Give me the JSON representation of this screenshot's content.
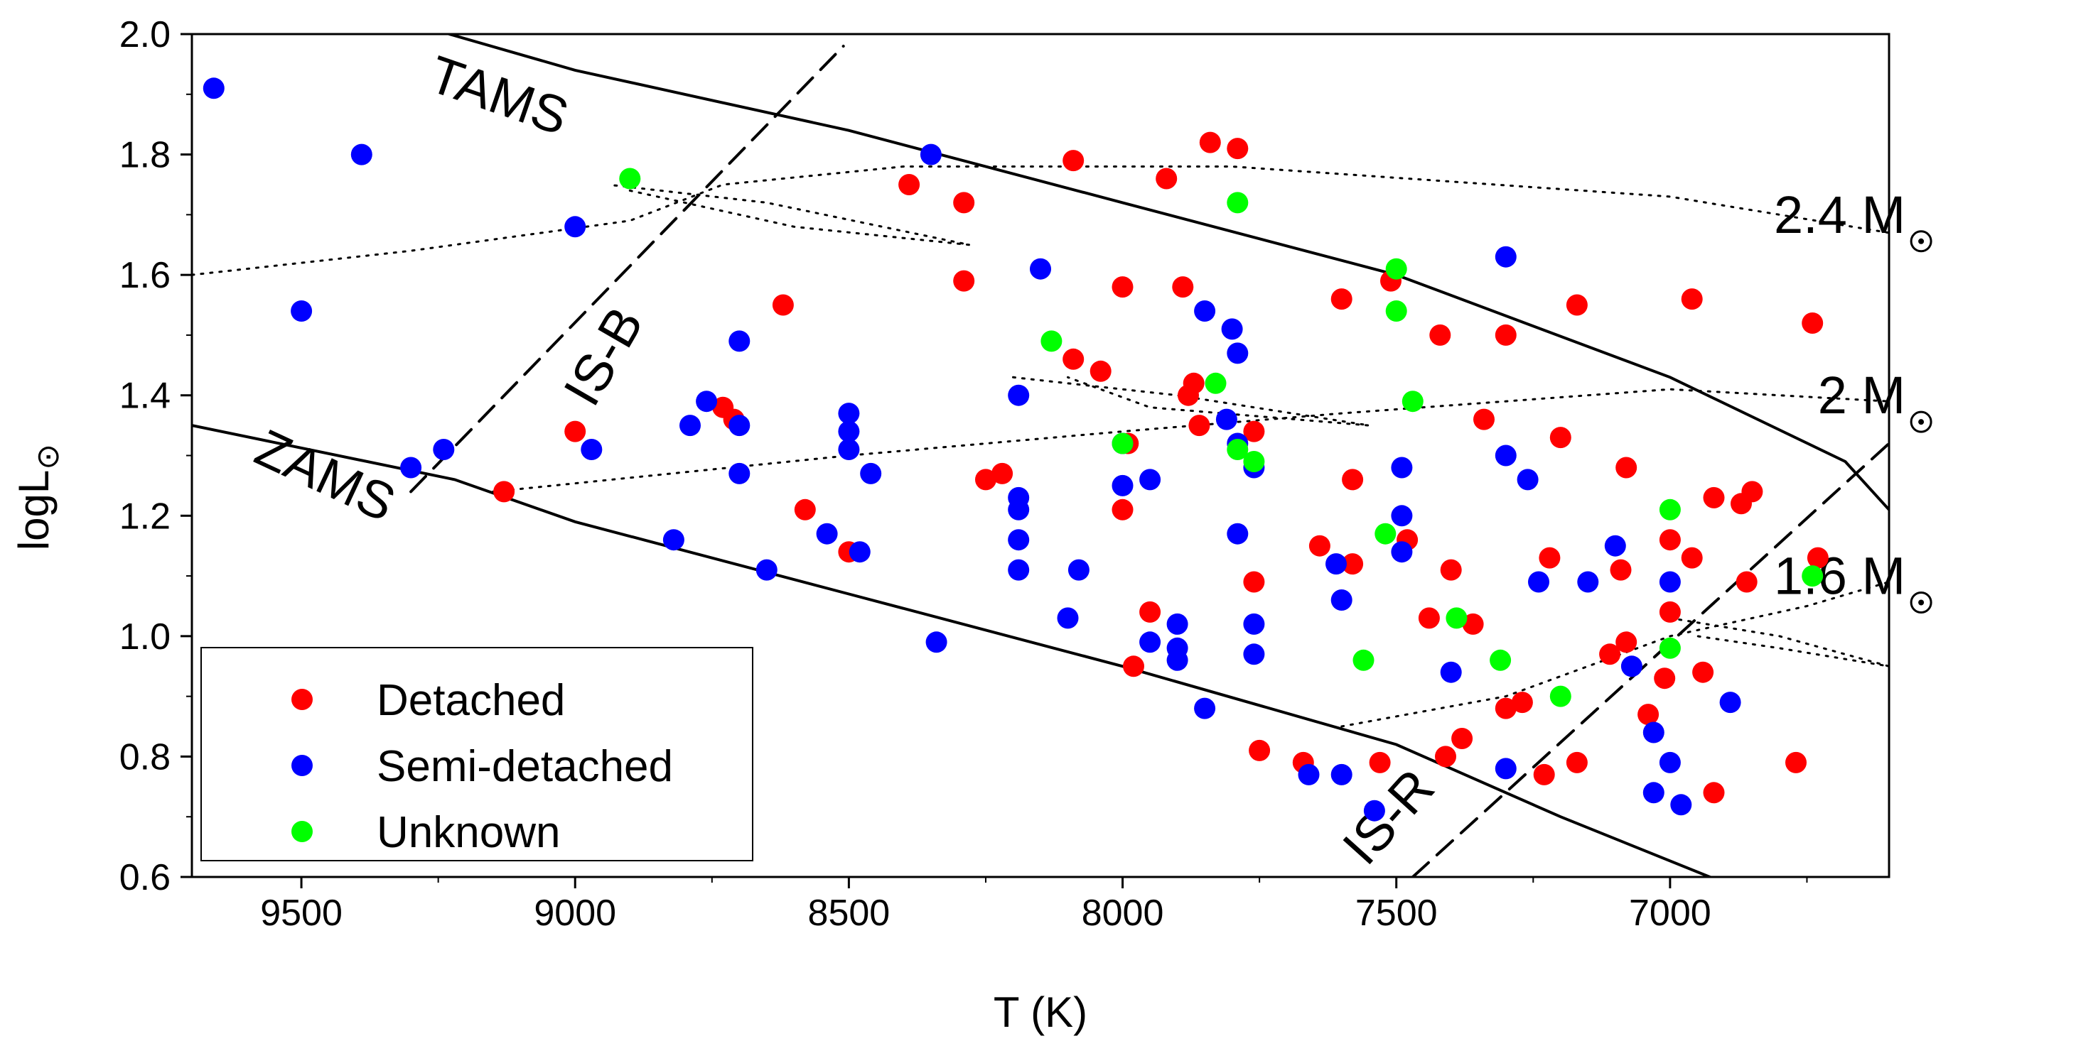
{
  "chart_data": {
    "type": "scatter",
    "title": "",
    "xlabel": "T (K)",
    "ylabel_main": "logL",
    "ylabel_sub": "⊙",
    "xlim": [
      9700,
      6600
    ],
    "ylim": [
      0.6,
      2.0
    ],
    "x_ticks": [
      9500,
      9000,
      8500,
      8000,
      7500,
      7000
    ],
    "y_ticks": [
      "0.6",
      "0.8",
      "1.0",
      "1.2",
      "1.4",
      "1.6",
      "1.8",
      "2.0"
    ],
    "legend": {
      "placement": "bottom-left",
      "entries": [
        {
          "name": "Detached",
          "color": "#ff0000"
        },
        {
          "name": "Semi-detached",
          "color": "#0000ff"
        },
        {
          "name": "Unknown",
          "color": "#00ff00"
        }
      ]
    },
    "curves": {
      "tams": [
        [
          9230,
          2.0
        ],
        [
          9000,
          1.94
        ],
        [
          8500,
          1.84
        ],
        [
          8000,
          1.72
        ],
        [
          7500,
          1.6
        ],
        [
          7000,
          1.43
        ],
        [
          6680,
          1.29
        ],
        [
          6600,
          1.21
        ]
      ],
      "zams": [
        [
          9700,
          1.35
        ],
        [
          9220,
          1.26
        ],
        [
          9000,
          1.19
        ],
        [
          8500,
          1.07
        ],
        [
          8000,
          0.95
        ],
        [
          7500,
          0.82
        ],
        [
          7200,
          0.7
        ],
        [
          6900,
          0.59
        ]
      ],
      "is_b": [
        [
          9300,
          1.24
        ],
        [
          8510,
          1.98
        ]
      ],
      "is_r": [
        [
          7470,
          0.6
        ],
        [
          6600,
          1.32
        ]
      ],
      "track_2_4": [
        [
          9700,
          1.6
        ],
        [
          9300,
          1.64
        ],
        [
          8900,
          1.69
        ],
        [
          8730,
          1.75
        ],
        [
          8400,
          1.78
        ],
        [
          7800,
          1.78
        ],
        [
          7000,
          1.73
        ],
        [
          6600,
          1.67
        ]
      ],
      "track_2_4_loop": [
        [
          8900,
          1.74
        ],
        [
          8600,
          1.68
        ],
        [
          8280,
          1.65
        ],
        [
          8650,
          1.72
        ],
        [
          8940,
          1.75
        ]
      ],
      "track_2": [
        [
          9150,
          1.24
        ],
        [
          8500,
          1.3
        ],
        [
          8000,
          1.34
        ],
        [
          7600,
          1.37
        ],
        [
          7000,
          1.41
        ],
        [
          6600,
          1.39
        ]
      ],
      "track_2_loop": [
        [
          8200,
          1.43
        ],
        [
          7900,
          1.4
        ],
        [
          7550,
          1.35
        ],
        [
          7950,
          1.38
        ],
        [
          8100,
          1.43
        ]
      ],
      "track_1_6": [
        [
          7600,
          0.85
        ],
        [
          7300,
          0.9
        ],
        [
          7000,
          1.0
        ],
        [
          6750,
          1.05
        ],
        [
          6600,
          1.09
        ]
      ],
      "track_1_6_loop": [
        [
          7000,
          1.03
        ],
        [
          6800,
          1.0
        ],
        [
          6600,
          0.95
        ],
        [
          6800,
          0.98
        ],
        [
          6950,
          1.0
        ]
      ]
    },
    "annotations": [
      {
        "text": "TAMS",
        "x": 9150,
        "y": 1.87,
        "rotate": 19
      },
      {
        "text": "ZAMS",
        "x": 9470,
        "y": 1.24,
        "rotate": 25
      },
      {
        "text": "IS-B",
        "x": 8920,
        "y": 1.45,
        "rotate": -60
      },
      {
        "text": "IS-R",
        "x": 7490,
        "y": 0.68,
        "rotate": -48
      },
      {
        "text": "2.4 M",
        "x": 6570,
        "y": 1.67,
        "sun": true
      },
      {
        "text": "2 M",
        "x": 6570,
        "y": 1.37,
        "sun": true
      },
      {
        "text": "1.6 M",
        "x": 6570,
        "y": 1.07,
        "sun": true
      }
    ],
    "series": [
      {
        "name": "Detached",
        "color": "#ff0000",
        "points": [
          [
            9130,
            1.24
          ],
          [
            9000,
            1.34
          ],
          [
            8730,
            1.38
          ],
          [
            8710,
            1.36
          ],
          [
            8620,
            1.55
          ],
          [
            8580,
            1.21
          ],
          [
            8500,
            1.14
          ],
          [
            8390,
            1.75
          ],
          [
            8290,
            1.72
          ],
          [
            8290,
            1.59
          ],
          [
            8250,
            1.26
          ],
          [
            8220,
            1.27
          ],
          [
            8090,
            1.79
          ],
          [
            8090,
            1.46
          ],
          [
            8040,
            1.44
          ],
          [
            8000,
            1.58
          ],
          [
            7990,
            1.32
          ],
          [
            8000,
            1.21
          ],
          [
            7980,
            0.95
          ],
          [
            7950,
            1.04
          ],
          [
            7920,
            1.76
          ],
          [
            7890,
            1.58
          ],
          [
            7880,
            1.4
          ],
          [
            7870,
            1.42
          ],
          [
            7860,
            1.35
          ],
          [
            7840,
            1.82
          ],
          [
            7790,
            1.81
          ],
          [
            7760,
            1.34
          ],
          [
            7760,
            1.09
          ],
          [
            7750,
            0.81
          ],
          [
            7670,
            0.79
          ],
          [
            7640,
            1.15
          ],
          [
            7600,
            1.56
          ],
          [
            7580,
            1.12
          ],
          [
            7580,
            1.26
          ],
          [
            7530,
            0.79
          ],
          [
            7510,
            1.59
          ],
          [
            7480,
            1.16
          ],
          [
            7440,
            1.03
          ],
          [
            7420,
            1.5
          ],
          [
            7410,
            0.8
          ],
          [
            7400,
            1.11
          ],
          [
            7380,
            0.83
          ],
          [
            7360,
            1.02
          ],
          [
            7340,
            1.36
          ],
          [
            7300,
            1.5
          ],
          [
            7300,
            0.88
          ],
          [
            7270,
            0.89
          ],
          [
            7230,
            0.77
          ],
          [
            7220,
            1.13
          ],
          [
            7200,
            1.33
          ],
          [
            7170,
            1.55
          ],
          [
            7170,
            0.79
          ],
          [
            7110,
            0.97
          ],
          [
            7090,
            1.11
          ],
          [
            7080,
            1.28
          ],
          [
            7080,
            0.99
          ],
          [
            7040,
            0.87
          ],
          [
            7010,
            0.93
          ],
          [
            7000,
            1.16
          ],
          [
            7000,
            1.04
          ],
          [
            6960,
            1.56
          ],
          [
            6960,
            1.13
          ],
          [
            6940,
            0.94
          ],
          [
            6920,
            1.23
          ],
          [
            6920,
            0.74
          ],
          [
            6870,
            1.22
          ],
          [
            6860,
            1.09
          ],
          [
            6850,
            1.24
          ],
          [
            6740,
            1.52
          ],
          [
            6730,
            1.13
          ],
          [
            6770,
            0.79
          ]
        ]
      },
      {
        "name": "Semi-detached",
        "color": "#0000ff",
        "points": [
          [
            9660,
            1.91
          ],
          [
            9500,
            1.54
          ],
          [
            9390,
            1.8
          ],
          [
            9300,
            1.28
          ],
          [
            9240,
            1.31
          ],
          [
            9000,
            1.68
          ],
          [
            8970,
            1.31
          ],
          [
            8820,
            1.16
          ],
          [
            8790,
            1.35
          ],
          [
            8760,
            1.39
          ],
          [
            8700,
            1.49
          ],
          [
            8700,
            1.35
          ],
          [
            8700,
            1.27
          ],
          [
            8650,
            1.11
          ],
          [
            8540,
            1.17
          ],
          [
            8500,
            1.37
          ],
          [
            8500,
            1.34
          ],
          [
            8500,
            1.31
          ],
          [
            8480,
            1.14
          ],
          [
            8460,
            1.27
          ],
          [
            8350,
            1.8
          ],
          [
            8340,
            0.99
          ],
          [
            8190,
            1.4
          ],
          [
            8190,
            1.23
          ],
          [
            8190,
            1.21
          ],
          [
            8190,
            1.16
          ],
          [
            8190,
            1.11
          ],
          [
            8150,
            1.61
          ],
          [
            8100,
            1.03
          ],
          [
            8080,
            1.11
          ],
          [
            8000,
            1.32
          ],
          [
            8000,
            1.25
          ],
          [
            7950,
            1.26
          ],
          [
            7950,
            0.99
          ],
          [
            7900,
            1.02
          ],
          [
            7900,
            0.98
          ],
          [
            7900,
            0.96
          ],
          [
            7850,
            1.54
          ],
          [
            7850,
            0.88
          ],
          [
            7810,
            1.36
          ],
          [
            7800,
            1.51
          ],
          [
            7790,
            1.47
          ],
          [
            7790,
            1.32
          ],
          [
            7790,
            1.17
          ],
          [
            7760,
            1.28
          ],
          [
            7760,
            1.02
          ],
          [
            7760,
            0.97
          ],
          [
            7660,
            0.77
          ],
          [
            7610,
            1.12
          ],
          [
            7600,
            1.06
          ],
          [
            7600,
            0.77
          ],
          [
            7540,
            0.71
          ],
          [
            7490,
            1.28
          ],
          [
            7490,
            1.2
          ],
          [
            7490,
            1.14
          ],
          [
            7400,
            0.94
          ],
          [
            7300,
            1.63
          ],
          [
            7300,
            1.3
          ],
          [
            7300,
            0.78
          ],
          [
            7260,
            1.26
          ],
          [
            7240,
            1.09
          ],
          [
            7150,
            1.09
          ],
          [
            7100,
            1.15
          ],
          [
            7070,
            0.95
          ],
          [
            7030,
            0.84
          ],
          [
            7030,
            0.74
          ],
          [
            7000,
            1.09
          ],
          [
            7000,
            0.79
          ],
          [
            6980,
            0.72
          ],
          [
            6890,
            0.89
          ]
        ]
      },
      {
        "name": "Unknown",
        "color": "#00ff00",
        "points": [
          [
            8900,
            1.76
          ],
          [
            8130,
            1.49
          ],
          [
            8000,
            1.32
          ],
          [
            7830,
            1.42
          ],
          [
            7790,
            1.72
          ],
          [
            7790,
            1.31
          ],
          [
            7760,
            1.29
          ],
          [
            7560,
            0.96
          ],
          [
            7520,
            1.17
          ],
          [
            7500,
            1.61
          ],
          [
            7500,
            1.54
          ],
          [
            7470,
            1.39
          ],
          [
            7390,
            1.03
          ],
          [
            7310,
            0.96
          ],
          [
            7200,
            0.9
          ],
          [
            7000,
            1.21
          ],
          [
            7000,
            0.98
          ],
          [
            6740,
            1.1
          ]
        ]
      }
    ]
  }
}
